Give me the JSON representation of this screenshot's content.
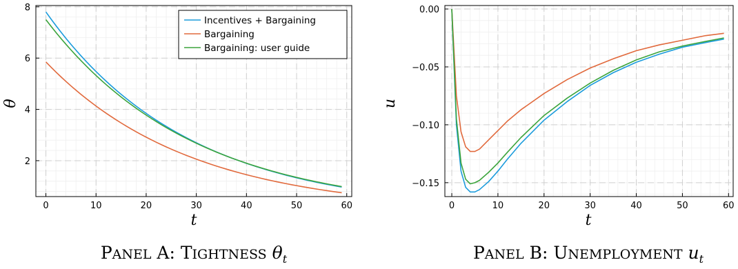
{
  "chart_data": [
    {
      "id": "A",
      "type": "line",
      "caption": {
        "lead": "P",
        "lead_rest": "ANEL",
        "letter": " A: ",
        "word_lead": "T",
        "word_rest": "IGHTNESS",
        "symbol": "θ",
        "subscript": "t"
      },
      "xlabel": "t",
      "ylabel": "θ",
      "xlim": [
        -2,
        61
      ],
      "ylim": [
        0.6,
        8.05
      ],
      "xticks": [
        0,
        10,
        20,
        30,
        40,
        50,
        60
      ],
      "yticks": [
        2,
        4,
        6,
        8
      ],
      "ytick_labels": [
        "2",
        "4",
        "6",
        "8"
      ],
      "grid": true,
      "legend_position": "top-right",
      "series": [
        {
          "name": "Incentives + Bargaining",
          "color": "#1a9bdc",
          "start": 7.8,
          "end": 0.97,
          "rate": 0.0354,
          "x_end": 59
        },
        {
          "name": "Bargaining",
          "color": "#e1693c",
          "start": 5.85,
          "end": 0.75,
          "rate": 0.0348,
          "x_end": 59
        },
        {
          "name": "Bargaining: user guide",
          "color": "#3ba43c",
          "start": 7.5,
          "end": 0.99,
          "rate": 0.0343,
          "x_end": 59
        }
      ]
    },
    {
      "id": "B",
      "type": "line",
      "caption": {
        "lead": "P",
        "lead_rest": "ANEL",
        "letter": " B: ",
        "word_lead": "U",
        "word_rest": "NEMPLOYMENT",
        "symbol": "u",
        "subscript": "t"
      },
      "xlabel": "t",
      "ylabel": "u",
      "xlim": [
        -1.5,
        61
      ],
      "ylim": [
        -0.162,
        0.003
      ],
      "xticks": [
        0,
        10,
        20,
        30,
        40,
        50,
        60
      ],
      "yticks": [
        0.0,
        -0.05,
        -0.1,
        -0.15
      ],
      "ytick_labels": [
        "0.00",
        "−0.05",
        "−0.10",
        "−0.15"
      ],
      "grid": true,
      "series": [
        {
          "name": "Incentives + Bargaining",
          "color": "#1a9bdc",
          "x": [
            0,
            1,
            2,
            3,
            4,
            5,
            6,
            8,
            10,
            12,
            15,
            20,
            25,
            30,
            35,
            40,
            45,
            50,
            55,
            59
          ],
          "y": [
            0,
            -0.1,
            -0.14,
            -0.154,
            -0.158,
            -0.158,
            -0.156,
            -0.149,
            -0.14,
            -0.13,
            -0.116,
            -0.096,
            -0.08,
            -0.066,
            -0.055,
            -0.046,
            -0.039,
            -0.033,
            -0.029,
            -0.026
          ]
        },
        {
          "name": "Bargaining",
          "color": "#e1693c",
          "x": [
            0,
            1,
            2,
            3,
            4,
            5,
            6,
            8,
            10,
            12,
            15,
            20,
            25,
            30,
            35,
            40,
            45,
            50,
            55,
            59
          ],
          "y": [
            0,
            -0.075,
            -0.106,
            -0.119,
            -0.123,
            -0.123,
            -0.121,
            -0.113,
            -0.105,
            -0.097,
            -0.087,
            -0.073,
            -0.061,
            -0.051,
            -0.043,
            -0.036,
            -0.031,
            -0.027,
            -0.023,
            -0.021
          ]
        },
        {
          "name": "Bargaining: user guide",
          "color": "#3ba43c",
          "x": [
            0,
            1,
            2,
            3,
            4,
            5,
            6,
            8,
            10,
            12,
            15,
            20,
            25,
            30,
            35,
            40,
            45,
            50,
            55,
            59
          ],
          "y": [
            0,
            -0.095,
            -0.133,
            -0.147,
            -0.151,
            -0.15,
            -0.148,
            -0.141,
            -0.133,
            -0.124,
            -0.111,
            -0.092,
            -0.077,
            -0.064,
            -0.053,
            -0.044,
            -0.037,
            -0.032,
            -0.028,
            -0.025
          ]
        }
      ]
    }
  ]
}
